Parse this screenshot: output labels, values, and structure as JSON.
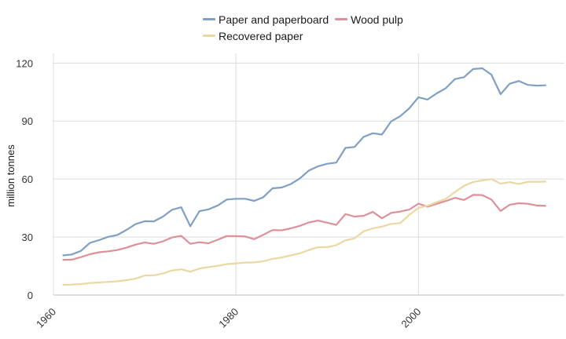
{
  "chart_data": {
    "type": "line",
    "title": "",
    "xlabel": "",
    "ylabel": "million tonnes",
    "xlim": [
      1960,
      2016
    ],
    "ylim": [
      0,
      125
    ],
    "x_ticks": [
      1960,
      1980,
      2000
    ],
    "y_ticks": [
      0,
      30,
      60,
      90,
      120
    ],
    "grid": "on",
    "legend_position": "top",
    "x": [
      1961,
      1962,
      1963,
      1964,
      1965,
      1966,
      1967,
      1968,
      1969,
      1970,
      1971,
      1972,
      1973,
      1974,
      1975,
      1976,
      1977,
      1978,
      1979,
      1980,
      1981,
      1982,
      1983,
      1984,
      1985,
      1986,
      1987,
      1988,
      1989,
      1990,
      1991,
      1992,
      1993,
      1994,
      1995,
      1996,
      1997,
      1998,
      1999,
      2000,
      2001,
      2002,
      2003,
      2004,
      2005,
      2006,
      2007,
      2008,
      2009,
      2010,
      2011,
      2012,
      2013,
      2014
    ],
    "series": [
      {
        "name": "Paper and paperboard",
        "color": "#7f9fc4",
        "values": [
          20.5,
          21,
          22.8,
          27,
          28.4,
          30.1,
          31.1,
          33.7,
          36.7,
          38.2,
          38.1,
          40.6,
          44.1,
          45.4,
          35.6,
          43.4,
          44.3,
          46.3,
          49.4,
          49.8,
          49.8,
          48.7,
          50.6,
          55.2,
          55.6,
          57.4,
          60.3,
          64.4,
          66.6,
          67.9,
          68.5,
          76.1,
          76.6,
          81.8,
          83.7,
          83,
          89.8,
          92.5,
          96.6,
          102.3,
          101.1,
          104.3,
          107,
          111.7,
          112.7,
          116.9,
          117.3,
          114,
          103.9,
          109.3,
          110.7,
          108.7,
          108.3,
          108.5
        ]
      },
      {
        "name": "Wood pulp",
        "color": "#df8f9a",
        "values": [
          18.2,
          18.3,
          19.6,
          21.1,
          22.1,
          22.6,
          23.3,
          24.5,
          26.1,
          27.2,
          26.5,
          27.8,
          29.8,
          30.6,
          26.5,
          27.3,
          26.8,
          28.6,
          30.5,
          30.5,
          30.3,
          28.9,
          31.2,
          33.6,
          33.5,
          34.5,
          35.8,
          37.6,
          38.5,
          37.4,
          36.3,
          41.9,
          40.6,
          41,
          43,
          39.7,
          42.5,
          43.2,
          44.2,
          47.3,
          45.7,
          47.2,
          48.6,
          50.3,
          49.2,
          51.8,
          51.7,
          49.4,
          43.5,
          46.7,
          47.5,
          47.2,
          46.3,
          46.1
        ]
      },
      {
        "name": "Recovered paper",
        "color": "#ead7a1",
        "values": [
          5.3,
          5.4,
          5.7,
          6.2,
          6.5,
          6.8,
          7.1,
          7.7,
          8.5,
          10.1,
          10.2,
          11.2,
          12.7,
          13.3,
          12.1,
          13.7,
          14.5,
          15.1,
          16,
          16.4,
          16.8,
          16.9,
          17.5,
          18.7,
          19.4,
          20.5,
          21.6,
          23.3,
          24.7,
          24.8,
          25.8,
          28.3,
          29.3,
          33,
          34.5,
          35.4,
          36.8,
          37.2,
          41.5,
          45.1,
          46.2,
          48,
          49.8,
          53.3,
          56.5,
          58.5,
          59.3,
          60,
          57.6,
          58.4,
          57.4,
          58.6,
          58.6,
          58.7
        ]
      }
    ]
  }
}
